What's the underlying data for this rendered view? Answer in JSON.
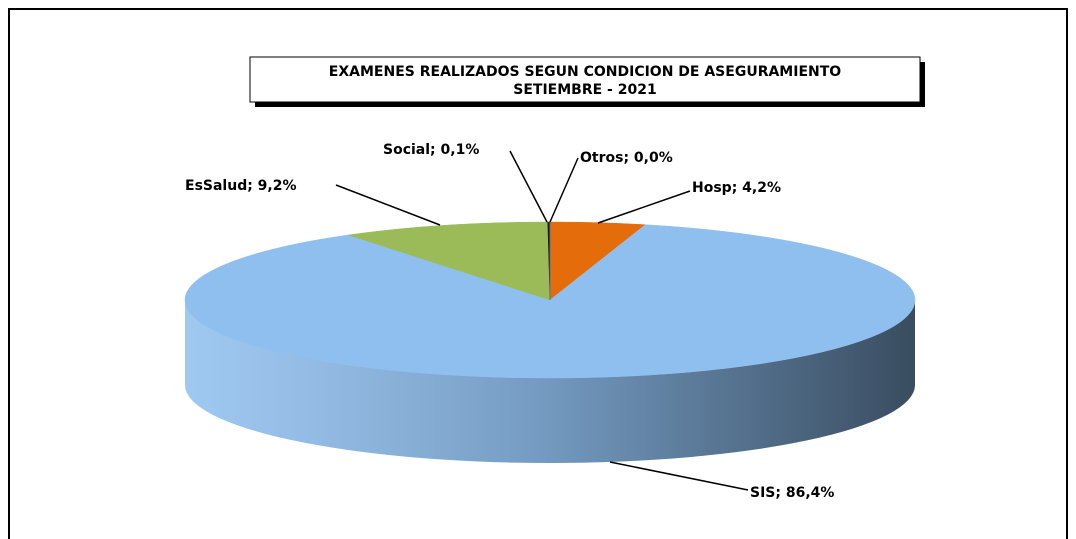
{
  "chart_data": {
    "type": "pie",
    "title": "EXAMENES REALIZADOS SEGUN CONDICION DE ASEGURAMIENTO",
    "subtitle": "SETIEMBRE - 2021",
    "values": [
      4.2,
      86.4,
      9.2,
      0.1,
      0.0
    ],
    "value_labels": [
      "Hosp; 4,2%",
      "SIS; 86,4%",
      "EsSalud; 9,2%",
      "Social; 0,1%",
      "Otros; 0,0%"
    ],
    "colors": [
      "#e46c0a",
      "#8fbfef",
      "#9bbb59",
      "#1f1f1f",
      "#4f81bd"
    ]
  }
}
